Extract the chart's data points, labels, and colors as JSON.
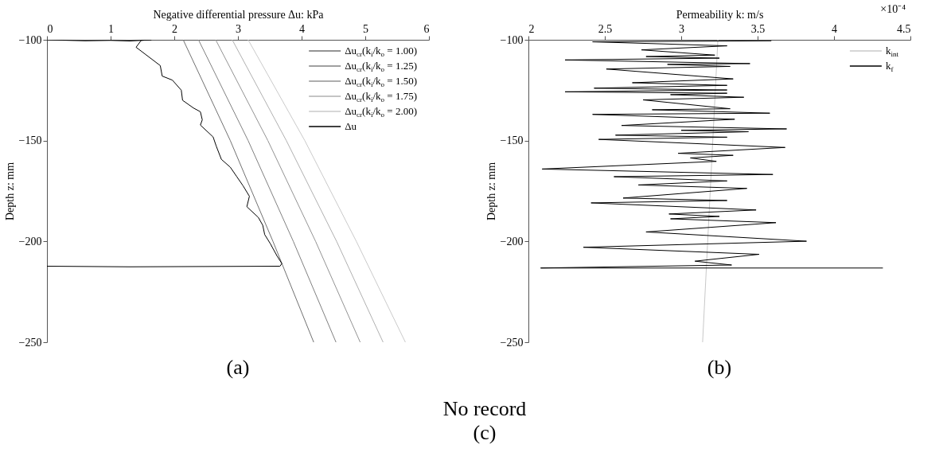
{
  "chart_data": [
    {
      "type": "line",
      "xlabel": "Negative differential pressure Δu: kPa",
      "ylabel": "Depth z: mm",
      "xlim": [
        0,
        6
      ],
      "xticks": [
        0,
        1,
        2,
        3,
        4,
        5,
        6
      ],
      "ylim": [
        -250,
        -100
      ],
      "yticks": [
        -100,
        -150,
        -200,
        -250
      ],
      "legend": "top right",
      "line_style": "solid",
      "annotations": [
        "(a)"
      ],
      "series": [
        {
          "name": "Δu$_{cr}$(k$_{i}$/k$_{o}$ = 1.00)",
          "color": "#707070",
          "x": [
            2.14,
            2.88,
            3.55,
            4.19
          ],
          "values": [
            -100,
            -150,
            -200,
            -250
          ]
        },
        {
          "name": "Δu$_{cr}$(k$_{i}$/k$_{o}$ = 1.25)",
          "color": "#808080",
          "x": [
            2.38,
            3.16,
            3.87,
            4.54
          ],
          "values": [
            -100,
            -150,
            -200,
            -250
          ]
        },
        {
          "name": "Δu$_{cr}$(k$_{i}$/k$_{o}$ = 1.50)",
          "color": "#939393",
          "x": [
            2.65,
            3.47,
            4.22,
            4.92
          ],
          "values": [
            -100,
            -150,
            -200,
            -250
          ]
        },
        {
          "name": "Δu$_{cr}$(k$_{i}$/k$_{o}$ = 1.75)",
          "color": "#b0b0b0",
          "x": [
            2.91,
            3.76,
            4.55,
            5.28
          ],
          "values": [
            -100,
            -150,
            -200,
            -250
          ]
        },
        {
          "name": "Δu$_{cr}$(k$_{i}$/k$_{o}$ = 2.00)",
          "color": "#cacaca",
          "x": [
            3.16,
            4.05,
            4.86,
            5.63
          ],
          "values": [
            -100,
            -150,
            -200,
            -250
          ]
        },
        {
          "name": "Δu",
          "color": "#000000",
          "x": [
            0,
            0.6,
            1.0,
            1.3,
            1.64,
            1.48,
            1.4,
            1.78,
            1.81,
            1.97,
            2.11,
            2.13,
            2.3,
            2.41,
            2.44,
            2.41,
            2.61,
            2.66,
            2.74,
            2.88,
            2.98,
            3.08,
            3.18,
            3.14,
            3.32,
            3.39,
            3.42,
            3.51,
            3.61,
            3.69,
            3.66,
            1.3,
            0
          ],
          "values": [
            -100,
            -100.5,
            -100.3,
            -100.6,
            -100,
            -100.3,
            -103.7,
            -112.8,
            -118,
            -120,
            -125,
            -130,
            -133.8,
            -135.7,
            -139.7,
            -142.3,
            -148.2,
            -152.8,
            -159.3,
            -163.2,
            -167.8,
            -172.4,
            -177.6,
            -182.8,
            -188.1,
            -192,
            -196.6,
            -201.2,
            -207,
            -211,
            -212.3,
            -212.6,
            -212.3
          ]
        }
      ]
    },
    {
      "type": "line",
      "xlabel": "Permeability k: m/s",
      "ylabel": "Depth z: mm",
      "xlim": [
        2,
        4.5
      ],
      "xticks": [
        2,
        2.5,
        3,
        3.5,
        4,
        4.5
      ],
      "ylim": [
        -250,
        -100
      ],
      "yticks": [
        -100,
        -150,
        -200,
        -250
      ],
      "legend": "top right",
      "line_style": "solid",
      "annotations": [
        "×10⁻⁴",
        "(b)"
      ],
      "series": [
        {
          "name": "k$_{int}$",
          "color": "#c8c8c8",
          "x": [
            3.24,
            3.14
          ],
          "values": [
            -100,
            -250
          ]
        },
        {
          "name": "k$_{f}$",
          "color": "#000000",
          "x": [
            3.59,
            2.42,
            3.3,
            2.74,
            3.22,
            2.77,
            3.25,
            2.24,
            3.45,
            2.91,
            3.32,
            2.51,
            3.34,
            2.68,
            3.3,
            2.43,
            3.3,
            2.24,
            3.3,
            2.93,
            3.41,
            2.75,
            3.32,
            2.81,
            3.58,
            2.42,
            3.35,
            2.61,
            3.69,
            3.0,
            3.44,
            2.57,
            3.3,
            2.46,
            3.68,
            2.98,
            3.34,
            3.06,
            3.23,
            2.09,
            3.6,
            2.56,
            3.3,
            2.72,
            3.43,
            2.62,
            3.3,
            2.41,
            3.49,
            2.92,
            3.25,
            2.93,
            3.62,
            2.77,
            3.82,
            2.36,
            3.51,
            3.09,
            3.33,
            2.08,
            4.32
          ],
          "values": [
            -100.5,
            -101,
            -103,
            -105,
            -107.6,
            -108.3,
            -109.1,
            -110,
            -111.8,
            -112.2,
            -113.2,
            -114.5,
            -119.4,
            -121.3,
            -122.6,
            -124,
            -124.9,
            -125.8,
            -126.5,
            -127.2,
            -128.5,
            -129.8,
            -134.2,
            -134.7,
            -136.4,
            -137,
            -139.4,
            -142.5,
            -144.2,
            -144.9,
            -145.6,
            -147.3,
            -148.3,
            -149.4,
            -153.4,
            -156.3,
            -157.3,
            -158.6,
            -160.3,
            -164.1,
            -166.8,
            -167.9,
            -170,
            -172,
            -173.7,
            -178.5,
            -179.7,
            -180.9,
            -184.4,
            -186.4,
            -187.6,
            -188.8,
            -190.7,
            -195.3,
            -199.9,
            -202.9,
            -206.4,
            -209.8,
            -211.7,
            -213.2,
            -213.2
          ]
        }
      ]
    },
    {
      "type": "other",
      "annotations": [
        "No record",
        "(c)"
      ]
    }
  ]
}
